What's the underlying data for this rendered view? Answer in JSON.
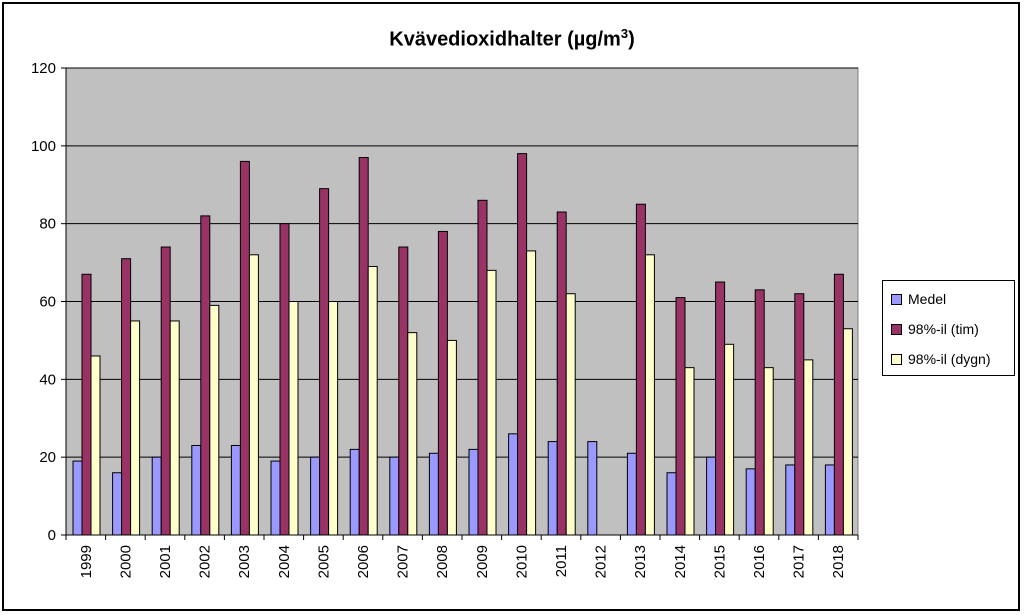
{
  "chart_data": {
    "type": "bar",
    "title": "Kvävedioxidhalter (µg/m",
    "title_sup": "3",
    "title_close": ")",
    "categories": [
      "1999",
      "2000",
      "2001",
      "2002",
      "2003",
      "2004",
      "2005",
      "2006",
      "2007",
      "2008",
      "2009",
      "2010",
      "2011",
      "2012",
      "2013",
      "2014",
      "2015",
      "2016",
      "2017",
      "2018"
    ],
    "series": [
      {
        "name": "Medel",
        "color": "#9999ff",
        "values": [
          19,
          16,
          20,
          23,
          23,
          19,
          20,
          22,
          20,
          21,
          22,
          26,
          24,
          24,
          21,
          16,
          20,
          17,
          18,
          18
        ]
      },
      {
        "name": "98%-il (tim)",
        "color": "#993366",
        "values": [
          67,
          71,
          74,
          82,
          96,
          80,
          89,
          97,
          74,
          78,
          86,
          98,
          83,
          null,
          85,
          61,
          65,
          63,
          62,
          67
        ]
      },
      {
        "name": "98%-il (dygn)",
        "color": "#ffffcc",
        "values": [
          46,
          55,
          55,
          59,
          72,
          60,
          60,
          69,
          52,
          50,
          68,
          73,
          62,
          null,
          72,
          43,
          49,
          43,
          45,
          53
        ]
      }
    ],
    "yticks": [
      0,
      20,
      40,
      60,
      80,
      100,
      120
    ],
    "ylim": [
      0,
      120
    ],
    "grid": true,
    "plot_background": "#c0c0c0",
    "legend_position": "right"
  }
}
